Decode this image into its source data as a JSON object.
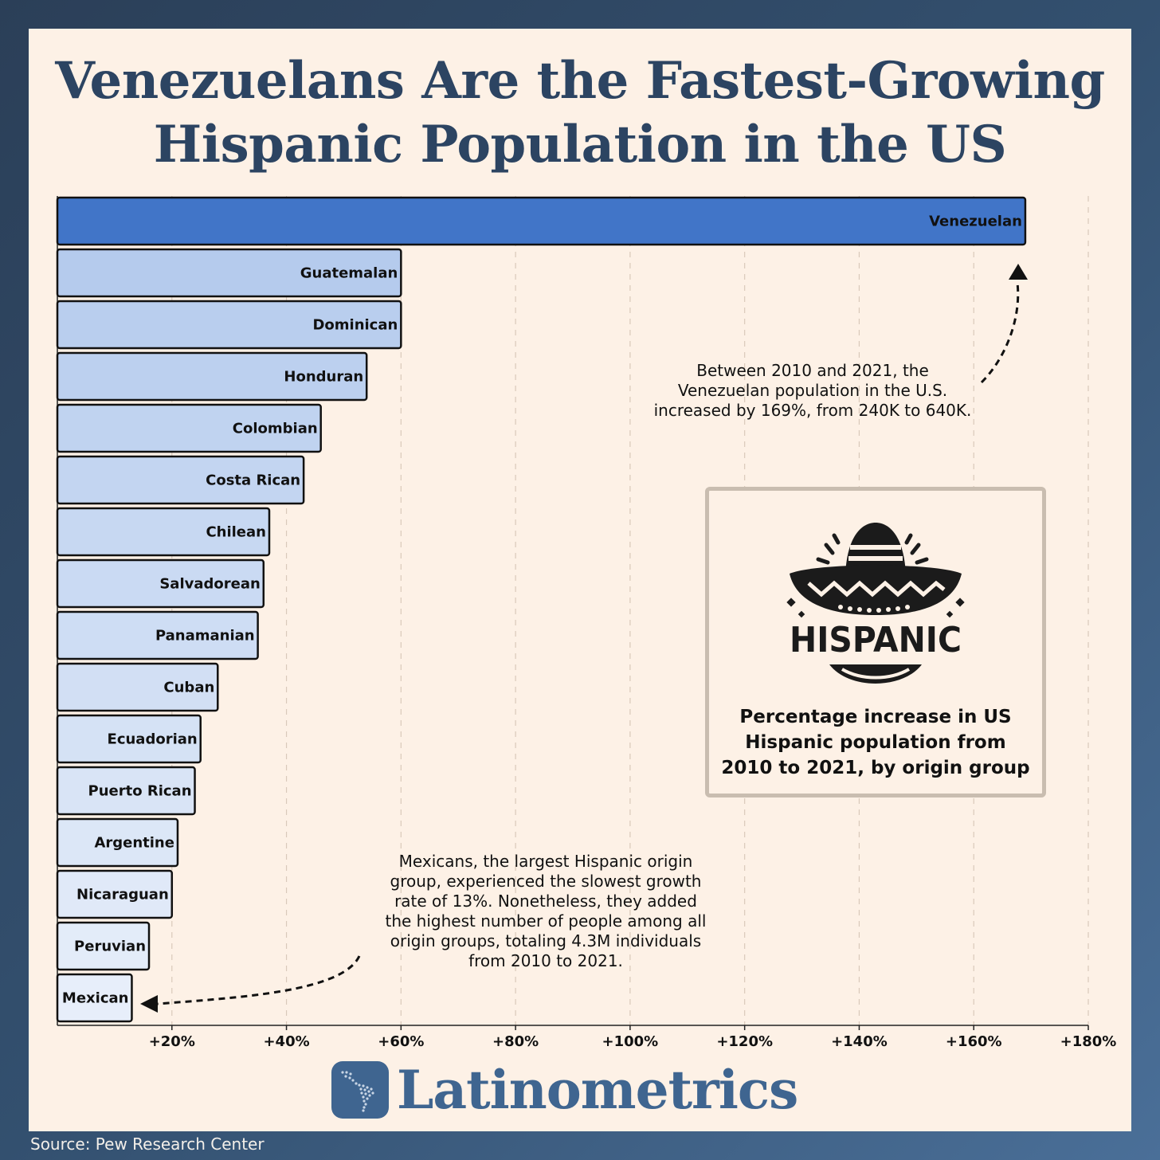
{
  "title_lines": [
    "Venezuelans Are the Fastest-Growing",
    "Hispanic Population in the US"
  ],
  "chart_data": {
    "type": "bar",
    "orientation": "horizontal",
    "categories": [
      "Venezuelan",
      "Guatemalan",
      "Dominican",
      "Honduran",
      "Colombian",
      "Costa Rican",
      "Chilean",
      "Salvadorean",
      "Panamanian",
      "Cuban",
      "Ecuadorian",
      "Puerto Rican",
      "Argentine",
      "Nicaraguan",
      "Peruvian",
      "Mexican"
    ],
    "values": [
      169,
      60,
      60,
      54,
      46,
      43,
      37,
      36,
      35,
      28,
      25,
      24,
      21,
      20,
      16,
      13
    ],
    "unit": "%",
    "xlim": [
      0,
      180
    ],
    "x_ticks": [
      20,
      40,
      60,
      80,
      100,
      120,
      140,
      160,
      180
    ],
    "x_tick_labels": [
      "+20%",
      "+40%",
      "+60%",
      "+80%",
      "+100%",
      "+120%",
      "+140%",
      "+160%",
      "+180%"
    ],
    "grid": "vertical dashed",
    "highlight_color": "#4175c8",
    "bar_color_start": "#b5cbed",
    "bar_color_end": "#e7eefa",
    "annotations": [
      "Between 2010 and 2021, the Venezuelan population in the U.S. increased by 169%, from 240K to 640K.",
      "Mexicans, the largest Hispanic origin group, experienced the slowest growth rate of 13%. Nonetheless, they added the highest number of people among all origin groups, totaling 4.3M individuals from 2010 to 2021."
    ]
  },
  "notes": {
    "venezuela": [
      "Between 2010 and 2021, the",
      "Venezuelan population in the U.S.",
      "increased by 169%, from 240K to 640K."
    ],
    "mexico": [
      "Mexicans, the largest Hispanic origin",
      "group, experienced the slowest growth",
      "rate of 13%. Nonetheless, they added",
      "the highest number of people among all",
      "origin groups, totaling 4.3M individuals",
      "from 2010 to 2021."
    ]
  },
  "info_box": {
    "icon_name": "sombrero-icon",
    "icon_text": "HISPANIC",
    "caption_lines": [
      "Percentage increase in US",
      "Hispanic population from",
      "2010 to 2021, by origin group"
    ]
  },
  "brand": {
    "name": "Latinometrics",
    "logo_icon": "latin-america-map-icon"
  },
  "source": "Source: Pew Research Center"
}
